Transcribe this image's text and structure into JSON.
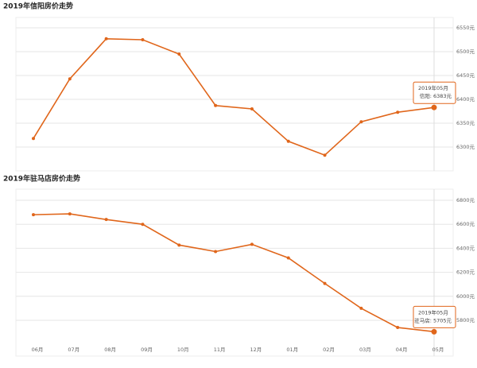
{
  "chart_data": [
    {
      "type": "line",
      "title": "2019年信阳房价走势",
      "color": "#e0661b",
      "values": [
        6318,
        6443,
        6527,
        6525,
        6495,
        6387,
        6380,
        6312,
        6283,
        6353,
        6373,
        6383
      ],
      "ylim": [
        6260,
        6570
      ],
      "yticks": [
        {
          "value": 6550,
          "label": "6550元"
        },
        {
          "value": 6500,
          "label": "6500元"
        },
        {
          "value": 6450,
          "label": "6450元"
        },
        {
          "value": 6400,
          "label": "6400元"
        },
        {
          "value": 6350,
          "label": "6350元"
        },
        {
          "value": 6300,
          "label": "6300元"
        }
      ],
      "grid": true,
      "tooltip": {
        "title": "2019年05月",
        "label": "信阳: 6383元"
      }
    },
    {
      "type": "line",
      "title": "2019年驻马店房价走势",
      "color": "#e0661b",
      "categories": [
        "06月",
        "07月",
        "08月",
        "09月",
        "10月",
        "11月",
        "12月",
        "01月",
        "02月",
        "03月",
        "04月",
        "05月"
      ],
      "values": [
        6680,
        6687,
        6640,
        6600,
        6427,
        6373,
        6433,
        6320,
        6107,
        5900,
        5740,
        5705
      ],
      "ylim": [
        5560,
        6900
      ],
      "yticks": [
        {
          "value": 6800,
          "label": "6800元"
        },
        {
          "value": 6600,
          "label": "6600元"
        },
        {
          "value": 6400,
          "label": "6400元"
        },
        {
          "value": 6200,
          "label": "6200元"
        },
        {
          "value": 6000,
          "label": "6000元"
        },
        {
          "value": 5800,
          "label": "5800元"
        }
      ],
      "grid": true,
      "tooltip": {
        "title": "2019年05月",
        "label": "驻马店: 5705元"
      }
    }
  ]
}
